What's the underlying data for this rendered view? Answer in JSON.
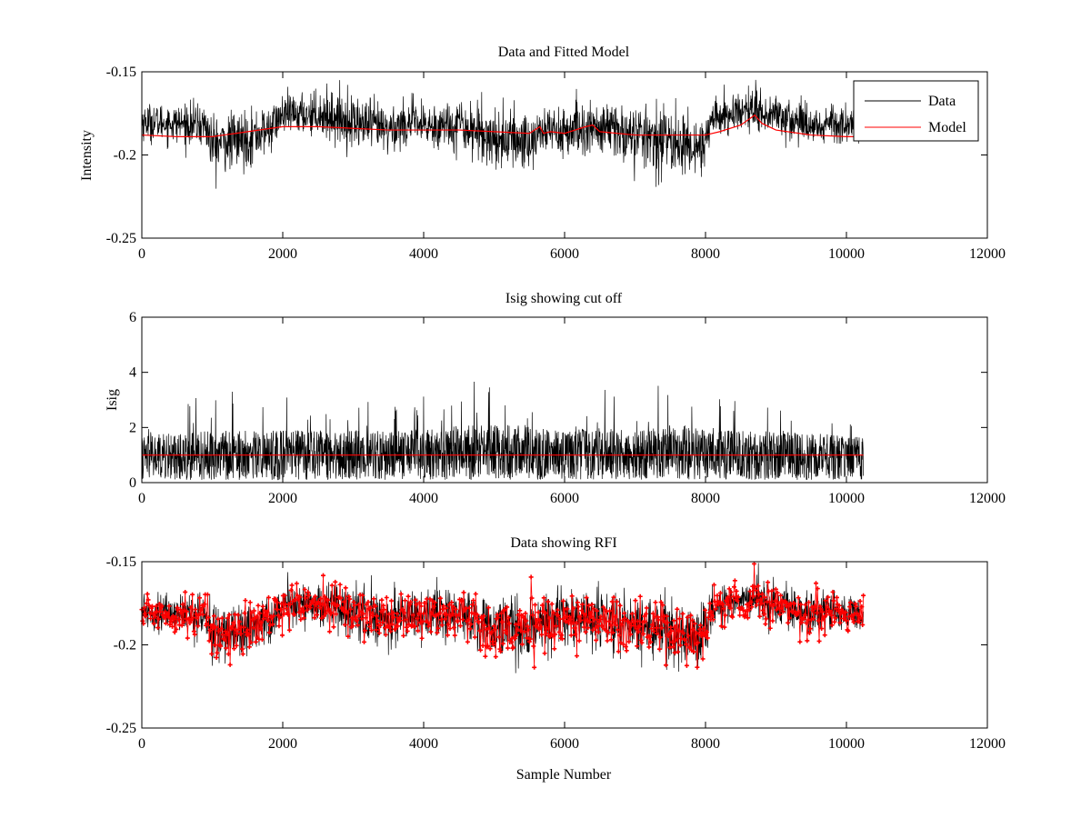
{
  "chart_data": [
    {
      "type": "line",
      "title": "Data and Fitted Model",
      "xlabel": "",
      "ylabel": "Intensity",
      "xlim": [
        0,
        12000
      ],
      "ylim": [
        -0.25,
        -0.15
      ],
      "y_reversed": true,
      "xticks": [
        0,
        2000,
        4000,
        6000,
        8000,
        10000,
        12000
      ],
      "xtick_labels": [
        "0",
        "2000",
        "4000",
        "6000",
        "8000",
        "10000",
        "12000"
      ],
      "yticks": [
        -0.15,
        -0.2,
        -0.25
      ],
      "ytick_labels": [
        "-0.15",
        "-0.2",
        "-0.25"
      ],
      "grid": false,
      "legend": {
        "placement": "top-right",
        "entries": [
          "Data",
          "Model"
        ]
      },
      "series": [
        {
          "name": "Data",
          "color": "#000000",
          "render": "noisy",
          "x": [
            0,
            500,
            900,
            1000,
            1500,
            1800,
            2000,
            2500,
            2800,
            3500,
            3800,
            4000,
            4500,
            5000,
            5500,
            5700,
            6000,
            6500,
            7000,
            7500,
            7800,
            8000,
            8100,
            8500,
            8700,
            9000,
            9500,
            10000,
            10240
          ],
          "center": [
            -0.18,
            -0.181,
            -0.182,
            -0.194,
            -0.19,
            -0.185,
            -0.176,
            -0.175,
            -0.178,
            -0.185,
            -0.18,
            -0.183,
            -0.181,
            -0.19,
            -0.192,
            -0.185,
            -0.186,
            -0.184,
            -0.188,
            -0.192,
            -0.195,
            -0.193,
            -0.178,
            -0.174,
            -0.172,
            -0.176,
            -0.182,
            -0.18,
            -0.181
          ],
          "spread": [
            0.01,
            0.01,
            0.012,
            0.016,
            0.015,
            0.013,
            0.01,
            0.012,
            0.014,
            0.014,
            0.012,
            0.012,
            0.014,
            0.016,
            0.017,
            0.015,
            0.014,
            0.015,
            0.016,
            0.017,
            0.016,
            0.016,
            0.01,
            0.01,
            0.012,
            0.012,
            0.012,
            0.01,
            0.01
          ]
        },
        {
          "name": "Model",
          "color": "#ff0000",
          "render": "line",
          "x": [
            0,
            500,
            1000,
            1500,
            2000,
            2500,
            3000,
            3500,
            4000,
            4500,
            5000,
            5500,
            5650,
            5700,
            5800,
            6000,
            6300,
            6400,
            6500,
            7000,
            7500,
            8000,
            8200,
            8500,
            8600,
            8700,
            8800,
            9000,
            9500,
            10000,
            10240
          ],
          "values": [
            -0.188,
            -0.189,
            -0.189,
            -0.186,
            -0.183,
            -0.183,
            -0.184,
            -0.185,
            -0.185,
            -0.185,
            -0.186,
            -0.187,
            -0.183,
            -0.187,
            -0.186,
            -0.187,
            -0.183,
            -0.182,
            -0.186,
            -0.188,
            -0.188,
            -0.188,
            -0.186,
            -0.182,
            -0.179,
            -0.176,
            -0.181,
            -0.185,
            -0.188,
            -0.189,
            -0.189
          ]
        }
      ]
    },
    {
      "type": "line",
      "title": "Isig showing cut off",
      "xlabel": "",
      "ylabel": "Isig",
      "xlim": [
        0,
        12000
      ],
      "ylim": [
        0,
        6
      ],
      "xticks": [
        0,
        2000,
        4000,
        6000,
        8000,
        10000,
        12000
      ],
      "xtick_labels": [
        "0",
        "2000",
        "4000",
        "6000",
        "8000",
        "10000",
        "12000"
      ],
      "yticks": [
        0,
        2,
        4,
        6
      ],
      "ytick_labels": [
        "0",
        "2",
        "4",
        "6"
      ],
      "grid": false,
      "series": [
        {
          "color": "#000000",
          "render": "spikes",
          "x": [
            0,
            1000,
            2000,
            3000,
            4000,
            4500,
            5000,
            5500,
            6000,
            6500,
            7000,
            7500,
            7900,
            8500,
            9000,
            10000,
            10240
          ],
          "center": [
            0.9,
            1.0,
            1.0,
            1.0,
            1.0,
            1.1,
            1.1,
            1.1,
            1.0,
            1.1,
            1.0,
            1.1,
            1.1,
            1.0,
            1.0,
            0.9,
            0.9
          ],
          "peak": [
            2.1,
            3.8,
            3.5,
            3.2,
            3.5,
            3.7,
            3.8,
            4.0,
            3.8,
            3.5,
            3.0,
            3.8,
            4.1,
            3.0,
            2.8,
            2.5,
            2.2
          ]
        },
        {
          "color": "#ff0000",
          "render": "line",
          "x": [
            0,
            10240
          ],
          "values": [
            1,
            1
          ]
        }
      ]
    },
    {
      "type": "line",
      "title": "Data showing RFI",
      "xlabel": "Sample Number",
      "ylabel": "",
      "xlim": [
        0,
        12000
      ],
      "ylim": [
        -0.25,
        -0.15
      ],
      "y_reversed": true,
      "xticks": [
        0,
        2000,
        4000,
        6000,
        8000,
        10000,
        12000
      ],
      "xtick_labels": [
        "0",
        "2000",
        "4000",
        "6000",
        "8000",
        "10000",
        "12000"
      ],
      "yticks": [
        -0.15,
        -0.2,
        -0.25
      ],
      "ytick_labels": [
        "-0.15",
        "-0.2",
        "-0.25"
      ],
      "grid": false,
      "series": [
        {
          "color": "#000000",
          "render": "noisy",
          "x": [
            0,
            500,
            900,
            1000,
            1500,
            1800,
            2000,
            2500,
            2800,
            3500,
            3800,
            4000,
            4500,
            5000,
            5500,
            5700,
            6000,
            6500,
            7000,
            7500,
            7800,
            8000,
            8100,
            8500,
            8700,
            9000,
            9500,
            10000,
            10240
          ],
          "center": [
            -0.18,
            -0.181,
            -0.182,
            -0.194,
            -0.19,
            -0.185,
            -0.176,
            -0.175,
            -0.178,
            -0.185,
            -0.18,
            -0.183,
            -0.181,
            -0.19,
            -0.192,
            -0.185,
            -0.186,
            -0.184,
            -0.188,
            -0.192,
            -0.195,
            -0.193,
            -0.178,
            -0.174,
            -0.172,
            -0.176,
            -0.182,
            -0.18,
            -0.181
          ],
          "spread": [
            0.01,
            0.01,
            0.012,
            0.016,
            0.015,
            0.013,
            0.01,
            0.012,
            0.014,
            0.014,
            0.012,
            0.012,
            0.014,
            0.016,
            0.017,
            0.015,
            0.014,
            0.015,
            0.016,
            0.017,
            0.016,
            0.016,
            0.01,
            0.01,
            0.012,
            0.012,
            0.012,
            0.01,
            0.01
          ]
        },
        {
          "color": "#ff0000",
          "render": "markers",
          "marker": "+",
          "x": [
            0,
            500,
            900,
            1000,
            1500,
            1800,
            2000,
            2500,
            2800,
            3500,
            3800,
            4000,
            4500,
            5000,
            5500,
            5700,
            6000,
            6500,
            7000,
            7500,
            7800,
            8000,
            8100,
            8500,
            8700,
            9000,
            9500,
            10000,
            10240
          ],
          "center": [
            -0.18,
            -0.181,
            -0.182,
            -0.194,
            -0.19,
            -0.185,
            -0.176,
            -0.175,
            -0.178,
            -0.185,
            -0.18,
            -0.183,
            -0.181,
            -0.19,
            -0.192,
            -0.185,
            -0.186,
            -0.184,
            -0.188,
            -0.192,
            -0.195,
            -0.193,
            -0.178,
            -0.174,
            -0.172,
            -0.176,
            -0.182,
            -0.18,
            -0.181
          ],
          "spread": [
            0.01,
            0.01,
            0.012,
            0.016,
            0.015,
            0.013,
            0.01,
            0.012,
            0.014,
            0.014,
            0.012,
            0.012,
            0.014,
            0.016,
            0.017,
            0.015,
            0.014,
            0.015,
            0.016,
            0.017,
            0.016,
            0.016,
            0.01,
            0.01,
            0.012,
            0.012,
            0.012,
            0.01,
            0.01
          ]
        }
      ]
    }
  ]
}
